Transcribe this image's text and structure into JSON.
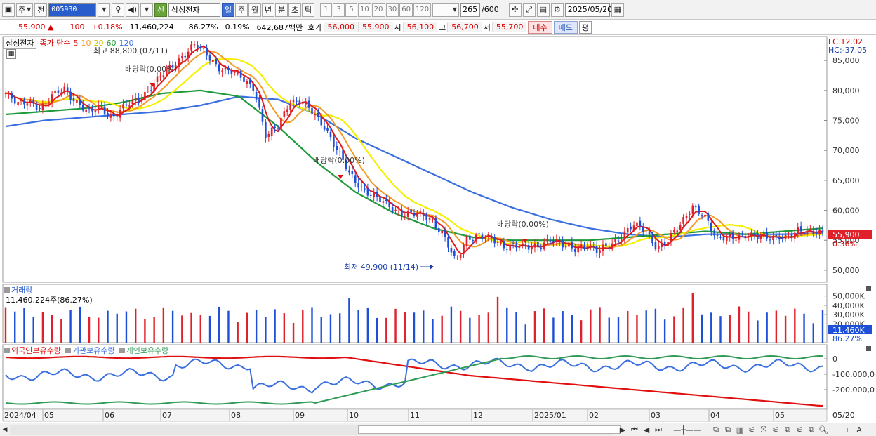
{
  "toolbar": {
    "market_label": "주",
    "mode_label": "전",
    "code": "005930",
    "name_badge": "신",
    "stock_name": "삼성전자",
    "periods": [
      {
        "label": "일",
        "active": true
      },
      {
        "label": "주",
        "active": false
      },
      {
        "label": "월",
        "active": false
      },
      {
        "label": "년",
        "active": false
      },
      {
        "label": "분",
        "active": false
      },
      {
        "label": "초",
        "active": false
      },
      {
        "label": "틱",
        "active": false
      }
    ],
    "intervals": [
      "1",
      "3",
      "5",
      "10",
      "20",
      "30",
      "60",
      "120"
    ],
    "count": "265",
    "count_max": "/600",
    "date": "2025/05/20"
  },
  "quote": {
    "price": "55,900",
    "change_arrow": "▲",
    "change": "100",
    "change_pct": "+0.18%",
    "volume": "11,460,224",
    "vol_ratio": "86.27%",
    "turnover_pct": "0.19%",
    "amount": "642,687백만",
    "hoga_label": "호가",
    "hoga_ask": "56,000",
    "hoga_bid": "55,900",
    "open_label": "시",
    "open": "56,100",
    "high_label": "고",
    "high": "56,700",
    "low_label": "저",
    "low": "55,700",
    "buy_label": "매수",
    "sell_label": "매도",
    "eval_label": "평"
  },
  "legend": {
    "stock_name": "삼성전자",
    "series_label": "종가 단순",
    "ma5": "5",
    "ma10": "10",
    "ma20": "20",
    "ma60": "60",
    "ma120": "120"
  },
  "colors": {
    "up": "#e0202a",
    "down": "#1d4fd8",
    "ma5": "#e01818",
    "ma10": "#f49b25",
    "ma20": "#f5f000",
    "ma60": "#1f9a3a",
    "ma120": "#3a6fe0",
    "foreign": "#e01010",
    "institution": "#3a6fe0",
    "individual": "#2e9a55"
  },
  "chart_data": {
    "type": "candlestick",
    "x_tick_labels": [
      "2024/04",
      "05",
      "06",
      "07",
      "08",
      "09",
      "10",
      "11",
      "12",
      "2025/01",
      "02",
      "03",
      "04",
      "05",
      "05/20"
    ],
    "y_tick_labels": [
      "85,000",
      "80,000",
      "75,000",
      "70,000",
      "65,000",
      "60,000",
      "55,000",
      "50,000"
    ],
    "ylim": [
      48000,
      89000
    ],
    "price_path": [
      79500,
      77500,
      78500,
      77000,
      79000,
      80500,
      78000,
      76000,
      77500,
      75500,
      77000,
      78500,
      80000,
      82000,
      84000,
      86000,
      87500,
      86000,
      84000,
      83000,
      82000,
      80500,
      72000,
      74000,
      78500,
      78000,
      76000,
      74000,
      70000,
      66000,
      64000,
      62500,
      61000,
      60000,
      59500,
      59000,
      58500,
      56000,
      51000,
      55500,
      56000,
      55000,
      54000,
      54500,
      53500,
      54000,
      55500,
      54000,
      53500,
      54500,
      53000,
      54000,
      56000,
      57500,
      56500,
      54000,
      55000,
      57500,
      61000,
      59000,
      55000,
      56000,
      55500,
      55500,
      56000,
      55500,
      55000,
      57000,
      56500,
      55900
    ],
    "ma_lines": [
      {
        "name": "5",
        "color": "#e01818"
      },
      {
        "name": "10",
        "color": "#f49b25"
      },
      {
        "name": "20",
        "color": "#f5f000"
      },
      {
        "name": "60",
        "color": "#1f9a3a"
      },
      {
        "name": "120",
        "color": "#3a6fe0"
      }
    ],
    "ma60": [
      76000,
      76500,
      77000,
      78000,
      79500,
      80000,
      79000,
      74000,
      68000,
      63000,
      59500,
      57000,
      55500,
      55000,
      55000,
      55000,
      55500,
      56000,
      56500,
      56000,
      56500,
      57000
    ],
    "ma120": [
      74000,
      75000,
      75500,
      76000,
      76500,
      77500,
      79000,
      78500,
      76000,
      72000,
      69000,
      66000,
      63000,
      60500,
      58500,
      57000,
      56000,
      55500,
      56000,
      56000,
      56000,
      56200
    ],
    "annotations": [
      {
        "text": "최고 88,800 (07/11)",
        "type": "high"
      },
      {
        "text": "배당락(0.00%)",
        "type": "dividend"
      },
      {
        "text": "배당락(0.00%)",
        "type": "dividend"
      },
      {
        "text": "배당락(0.00%)",
        "type": "dividend"
      },
      {
        "text": "최저 49,900 (11/14)",
        "type": "low"
      }
    ],
    "right_labels": {
      "lc": "LC:12.02",
      "hc": "HC:-37.05",
      "price": "55,900",
      "pct": "0.36%"
    },
    "volume": {
      "title": "거래량",
      "summary": "11,460,224주(86.27%)",
      "y_tick_labels": [
        "50,000K",
        "40,000K",
        "30,000K",
        "20,000K"
      ],
      "ylim": [
        0,
        58000
      ],
      "last": "11,460K",
      "last_pct": "86.27%"
    },
    "holdings": {
      "series": [
        {
          "name": "외국인보유수량",
          "color": "#e01010"
        },
        {
          "name": "기관보유수량",
          "color": "#3a6fe0"
        },
        {
          "name": "개인보유수량",
          "color": "#2e9a55"
        }
      ],
      "y_tick_labels": [
        "0",
        "-100,000,0",
        "-200,000,0"
      ]
    }
  }
}
